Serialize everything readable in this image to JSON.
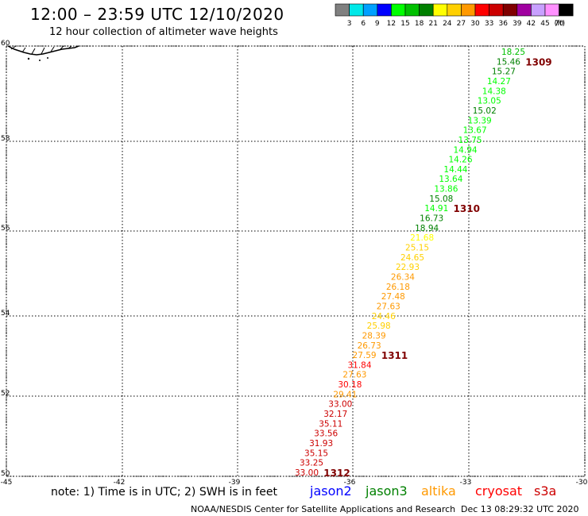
{
  "title": "12:00 – 23:59 UTC 12/10/2020",
  "subtitle": "12 hour collection of altimeter wave heights",
  "legend": {
    "unit": "(ft)",
    "bins": [
      {
        "label": "3",
        "color": "#808080"
      },
      {
        "label": "6",
        "color": "#00e8e8"
      },
      {
        "label": "9",
        "color": "#00a0ff"
      },
      {
        "label": "12",
        "color": "#0000ff"
      },
      {
        "label": "15",
        "color": "#00ff00"
      },
      {
        "label": "18",
        "color": "#00c000"
      },
      {
        "label": "21",
        "color": "#008000"
      },
      {
        "label": "24",
        "color": "#ffff00"
      },
      {
        "label": "27",
        "color": "#ffd000"
      },
      {
        "label": "30",
        "color": "#ff9900"
      },
      {
        "label": "33",
        "color": "#ff0000"
      },
      {
        "label": "36",
        "color": "#cc0000"
      },
      {
        "label": "39",
        "color": "#800000"
      },
      {
        "label": "42",
        "color": "#a000a0"
      },
      {
        "label": "45",
        "color": "#c8a0ff"
      },
      {
        "label": "70",
        "color": "#ff90ff"
      },
      {
        "label": "",
        "color": "#000000"
      }
    ]
  },
  "map": {
    "lon_labels": [
      "-45",
      "-42",
      "-39",
      "-36",
      "-33",
      "-30"
    ],
    "lat_labels": [
      "50",
      "52",
      "54",
      "56",
      "58",
      "60"
    ],
    "lon_range": [
      -45,
      -30
    ],
    "lat_range": [
      50,
      60
    ]
  },
  "wave_track": [
    {
      "value": "18.25",
      "color": "#00c000"
    },
    {
      "value": "15.46",
      "color": "#008000"
    },
    {
      "value": "15.27",
      "color": "#008000"
    },
    {
      "value": "14.27",
      "color": "#00ff00"
    },
    {
      "value": "14.38",
      "color": "#00ff00"
    },
    {
      "value": "13.05",
      "color": "#00ff00"
    },
    {
      "value": "15.02",
      "color": "#008000"
    },
    {
      "value": "13.39",
      "color": "#00ff00"
    },
    {
      "value": "13.67",
      "color": "#00ff00"
    },
    {
      "value": "13.75",
      "color": "#00ff00"
    },
    {
      "value": "14.94",
      "color": "#00ff00"
    },
    {
      "value": "14.26",
      "color": "#00ff00"
    },
    {
      "value": "14.44",
      "color": "#00ff00"
    },
    {
      "value": "13.64",
      "color": "#00ff00"
    },
    {
      "value": "13.86",
      "color": "#00ff00"
    },
    {
      "value": "15.08",
      "color": "#008000"
    },
    {
      "value": "14.91",
      "color": "#00ff00"
    },
    {
      "value": "16.73",
      "color": "#008000"
    },
    {
      "value": "18.94",
      "color": "#008000"
    },
    {
      "value": "21.68",
      "color": "#ffff00"
    },
    {
      "value": "25.15",
      "color": "#ffd000"
    },
    {
      "value": "24.65",
      "color": "#ffd000"
    },
    {
      "value": "22.93",
      "color": "#ffd000"
    },
    {
      "value": "26.34",
      "color": "#ff9900"
    },
    {
      "value": "26.18",
      "color": "#ff9900"
    },
    {
      "value": "27.48",
      "color": "#ff9900"
    },
    {
      "value": "27.63",
      "color": "#ff9900"
    },
    {
      "value": "24.46",
      "color": "#ffd000"
    },
    {
      "value": "25.98",
      "color": "#ffd000"
    },
    {
      "value": "28.39",
      "color": "#ff9900"
    },
    {
      "value": "26.73",
      "color": "#ff9900"
    },
    {
      "value": "27.59",
      "color": "#ff9900"
    },
    {
      "value": "31.84",
      "color": "#ff0000"
    },
    {
      "value": "27.63",
      "color": "#ff9900"
    },
    {
      "value": "30.18",
      "color": "#ff0000"
    },
    {
      "value": "29.41",
      "color": "#ff9900"
    },
    {
      "value": "33.00",
      "color": "#cc0000"
    },
    {
      "value": "32.17",
      "color": "#cc0000"
    },
    {
      "value": "35.11",
      "color": "#cc0000"
    },
    {
      "value": "33.56",
      "color": "#cc0000"
    },
    {
      "value": "31.93",
      "color": "#cc0000"
    },
    {
      "value": "35.15",
      "color": "#cc0000"
    },
    {
      "value": "33.25",
      "color": "#cc0000"
    },
    {
      "value": "33.00",
      "color": "#cc0000"
    }
  ],
  "time_labels": [
    "1309",
    "1310",
    "1311",
    "1312"
  ],
  "time_label_color": "#800000",
  "note": "note: 1) Time is in UTC; 2) SWH is in feet",
  "satellites": [
    {
      "name": "jason2",
      "color": "#0000ff"
    },
    {
      "name": "jason3",
      "color": "#008000"
    },
    {
      "name": "altika",
      "color": "#ff9900"
    },
    {
      "name": "cryosat",
      "color": "#ff0000"
    },
    {
      "name": "s3a",
      "color": "#cc0000"
    }
  ],
  "credit": "NOAA/NESDIS Center for Satellite Applications and Research",
  "timestamp": "Dec 13 08:29:32 UTC 2020"
}
